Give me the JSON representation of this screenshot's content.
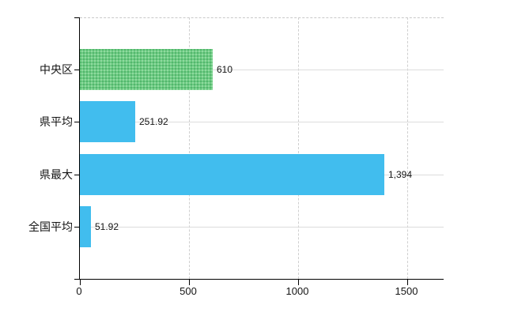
{
  "chart_data": {
    "type": "bar",
    "orientation": "horizontal",
    "title": "",
    "categories": [
      "中央区",
      "県平均",
      "県最大",
      "全国平均"
    ],
    "series": [
      {
        "name": "values",
        "values": [
          610,
          251.92,
          1394,
          51.92
        ]
      }
    ],
    "value_labels": [
      "610",
      "251.92",
      "1,394",
      "51.92"
    ],
    "bar_colors": [
      "#6dcc82",
      "#41bdee",
      "#41bdee",
      "#41bdee"
    ],
    "bar_patterns": [
      "dots",
      "solid",
      "solid",
      "solid"
    ],
    "x_axis": {
      "min": 0,
      "max": 1666,
      "ticks": [
        0,
        500,
        1000,
        1500
      ],
      "tick_labels": [
        "0",
        "500",
        "1000",
        "1500"
      ]
    },
    "y_axis": {
      "label": ""
    },
    "legend": null,
    "grid": {
      "vertical": "dashed",
      "horizontal_category_lines": "solid",
      "top_border": "dashed"
    },
    "style": {
      "background": "#ffffff",
      "axis_color": "#000000",
      "grid_color": "#dcdcdc",
      "dashed_line_color": "#c9c9c9",
      "text_color": "#141414",
      "green_bar": "#6dcc82",
      "blue_bar": "#41bdee"
    }
  }
}
